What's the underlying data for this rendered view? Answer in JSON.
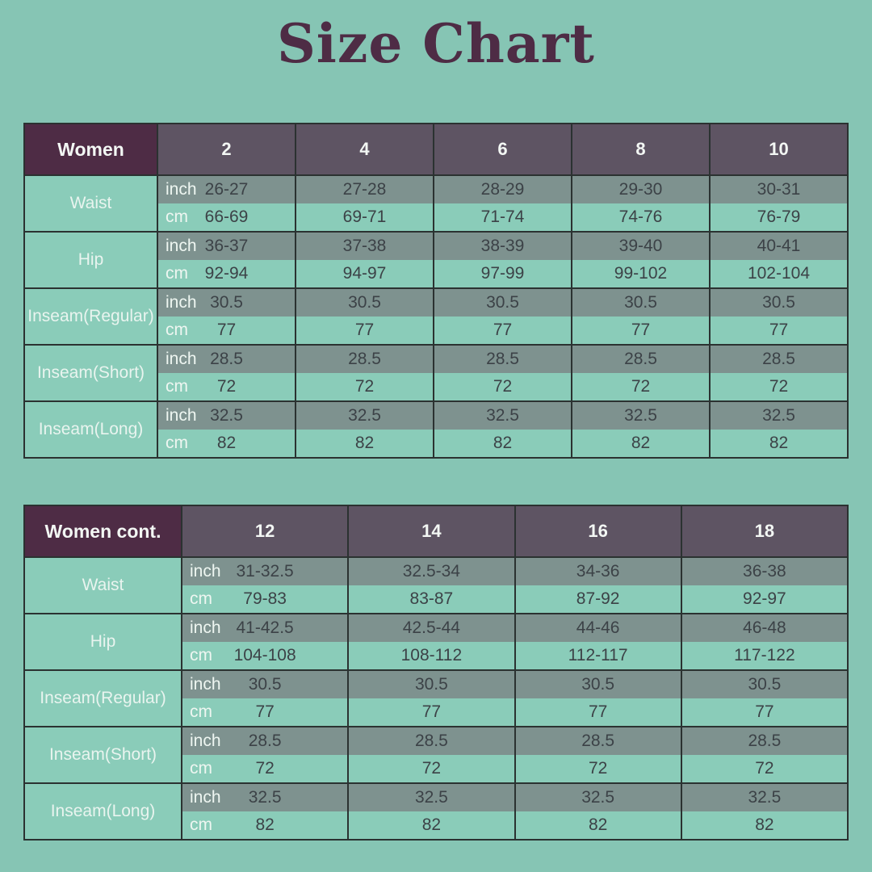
{
  "page": {
    "title": "Size Chart"
  },
  "colors": {
    "background": "#86c5b4",
    "title_text": "#4e2c45",
    "group_header_bg": "#4e2c45",
    "size_header_bg": "#5e5463",
    "inch_row_bg": "#7e928f",
    "cm_row_bg": "#8accb9",
    "border": "#2b3231",
    "value_text": "#3c4247",
    "light_text": "#f3f7f4"
  },
  "unit_labels": [
    "inch",
    "cm"
  ],
  "tables": [
    {
      "name": "Women",
      "sizes": [
        "2",
        "4",
        "6",
        "8",
        "10"
      ],
      "rows": [
        {
          "label_lines": [
            "Waist"
          ],
          "inch": [
            "26-27",
            "27-28",
            "28-29",
            "29-30",
            "30-31"
          ],
          "cm": [
            "66-69",
            "69-71",
            "71-74",
            "74-76",
            "76-79"
          ]
        },
        {
          "label_lines": [
            "Hip"
          ],
          "inch": [
            "36-37",
            "37-38",
            "38-39",
            "39-40",
            "40-41"
          ],
          "cm": [
            "92-94",
            "94-97",
            "97-99",
            "99-102",
            "102-104"
          ]
        },
        {
          "label_lines": [
            "Inseam",
            "(Regular)"
          ],
          "inch": [
            "30.5",
            "30.5",
            "30.5",
            "30.5",
            "30.5"
          ],
          "cm": [
            "77",
            "77",
            "77",
            "77",
            "77"
          ]
        },
        {
          "label_lines": [
            "Inseam",
            "(Short)"
          ],
          "inch": [
            "28.5",
            "28.5",
            "28.5",
            "28.5",
            "28.5"
          ],
          "cm": [
            "72",
            "72",
            "72",
            "72",
            "72"
          ]
        },
        {
          "label_lines": [
            "Inseam",
            "(Long)"
          ],
          "inch": [
            "32.5",
            "32.5",
            "32.5",
            "32.5",
            "32.5"
          ],
          "cm": [
            "82",
            "82",
            "82",
            "82",
            "82"
          ]
        }
      ]
    },
    {
      "name": "Women cont.",
      "sizes": [
        "12",
        "14",
        "16",
        "18"
      ],
      "rows": [
        {
          "label_lines": [
            "Waist"
          ],
          "inch": [
            "31-32.5",
            "32.5-34",
            "34-36",
            "36-38"
          ],
          "cm": [
            "79-83",
            "83-87",
            "87-92",
            "92-97"
          ]
        },
        {
          "label_lines": [
            "Hip"
          ],
          "inch": [
            "41-42.5",
            "42.5-44",
            "44-46",
            "46-48"
          ],
          "cm": [
            "104-108",
            "108-112",
            "112-117",
            "117-122"
          ]
        },
        {
          "label_lines": [
            "Inseam",
            "(Regular)"
          ],
          "inch": [
            "30.5",
            "30.5",
            "30.5",
            "30.5"
          ],
          "cm": [
            "77",
            "77",
            "77",
            "77"
          ]
        },
        {
          "label_lines": [
            "Inseam",
            "(Short)"
          ],
          "inch": [
            "28.5",
            "28.5",
            "28.5",
            "28.5"
          ],
          "cm": [
            "72",
            "72",
            "72",
            "72"
          ]
        },
        {
          "label_lines": [
            "Inseam",
            "(Long)"
          ],
          "inch": [
            "32.5",
            "32.5",
            "32.5",
            "32.5"
          ],
          "cm": [
            "82",
            "82",
            "82",
            "82"
          ]
        }
      ]
    }
  ]
}
